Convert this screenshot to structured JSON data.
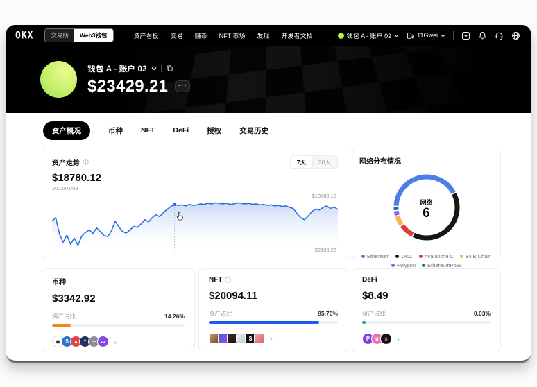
{
  "topbar": {
    "logo": "OKX",
    "toggle": [
      {
        "label": "交易所",
        "active": false
      },
      {
        "label": "Web3钱包",
        "active": true
      }
    ],
    "nav": [
      "资产看板",
      "交易",
      "赚币",
      "NFT 市场",
      "发现",
      "开发者文档"
    ],
    "account_label": "钱包 A - 账户 02",
    "gas_label": "11Gwei",
    "right_icons": [
      "download-icon",
      "bell-icon",
      "headset-icon",
      "globe-icon"
    ]
  },
  "hero": {
    "wallet_label": "钱包 A - 账户 02",
    "balance": "$23429.21",
    "more_label": "···"
  },
  "tabs": [
    {
      "label": "资产概况",
      "active": true
    },
    {
      "label": "币种",
      "active": false
    },
    {
      "label": "NFT",
      "active": false
    },
    {
      "label": "DeFi",
      "active": false
    },
    {
      "label": "授权",
      "active": false
    },
    {
      "label": "交易历史",
      "active": false
    }
  ],
  "trend_card": {
    "title": "资产走势",
    "value": "$18780.12",
    "date": "2023/01/08",
    "ranges": [
      {
        "label": "7天",
        "active": true
      },
      {
        "label": "30天",
        "active": false
      }
    ],
    "max_label": "$18780.12",
    "min_label": "$2190.26"
  },
  "network_card": {
    "title": "网络分布情况",
    "center_label": "网络",
    "center_value": "6"
  },
  "chart_data": [
    {
      "type": "line",
      "title": "资产走势",
      "xlabel": "",
      "ylabel": "",
      "ylim": [
        2190.26,
        18780.12
      ],
      "y_max_label": "$18780.12",
      "y_min_label": "$2190.26",
      "hover_point": {
        "date": "2023/01/08",
        "value": "$18780.12"
      },
      "line_color": "#2B6CDE",
      "fill_color_top": "rgba(59,115,222,0.28)",
      "marker_index": 33,
      "values": [
        55,
        62,
        30,
        14,
        28,
        10,
        22,
        8,
        26,
        33,
        38,
        31,
        42,
        35,
        27,
        25,
        36,
        55,
        44,
        35,
        32,
        38,
        45,
        43,
        50,
        58,
        54,
        62,
        68,
        64,
        72,
        78,
        84,
        88,
        86,
        87,
        85,
        88,
        86,
        87,
        89,
        88,
        90,
        89,
        91,
        90,
        89,
        90,
        88,
        89,
        91,
        90,
        89,
        90,
        88,
        89,
        87,
        88,
        86,
        87,
        85,
        86,
        84,
        85,
        82,
        80,
        70,
        62,
        58,
        65,
        74,
        79,
        77,
        82,
        85,
        80,
        83,
        78
      ]
    },
    {
      "type": "donut",
      "title": "网络分布情况",
      "center_label": "网络",
      "center_value": 6,
      "legend_position": "bottom",
      "segments": [
        {
          "name": "Ethereum",
          "color": "#4D7EE8",
          "value": 42
        },
        {
          "name": "OKC",
          "color": "#151515",
          "value": 40
        },
        {
          "name": "Avalanche C",
          "color": "#DF3A3E",
          "value": 7.5
        },
        {
          "name": "BNB Chain",
          "color": "#F3BA4F",
          "value": 5
        },
        {
          "name": "Polygon",
          "color": "#8B5CF6",
          "value": 2.2
        },
        {
          "name": "EthereumPoW",
          "color": "#0C7F8C",
          "value": 1.7
        }
      ]
    }
  ],
  "summary_cards": [
    {
      "title": "币种",
      "value": "$3342.92",
      "ratio_label": "资产占比",
      "percent_label": "14.26%",
      "percent": 14.26,
      "bar_color": "#F5861F",
      "icons": [
        {
          "name": "eth-icon",
          "bg": "#ffffff",
          "fg": "#3a3a3a",
          "glyph": "◆",
          "border": "#dcdcdc"
        },
        {
          "name": "usdc-icon",
          "bg": "#2775CA",
          "fg": "#fff",
          "glyph": "$"
        },
        {
          "name": "avax-icon",
          "bg": "#E0444A",
          "fg": "#fff",
          "glyph": "▲"
        },
        {
          "name": "ethw-icon",
          "bg": "#20315F",
          "fg": "#fff",
          "glyph": "*"
        },
        {
          "name": "okb-icon",
          "bg": "#8E8E8E",
          "fg": "#fff",
          "glyph": "~"
        },
        {
          "name": "polygon-icon",
          "bg": "#8247E5",
          "fg": "#fff",
          "glyph": "∞"
        }
      ],
      "chevron": "›"
    },
    {
      "title": "NFT",
      "value": "$20094.11",
      "ratio_label": "资产占比",
      "percent_label": "85.70%",
      "percent": 85.7,
      "bar_color": "#1F5AEF",
      "thumbs": [
        {
          "name": "nft-thumbnail",
          "bg": "linear-gradient(135deg,#c79a63,#6d4a2c)",
          "glyph": ""
        },
        {
          "name": "nft-thumbnail",
          "bg": "linear-gradient(135deg,#5156e5,#9b4de0)",
          "glyph": ""
        },
        {
          "name": "nft-thumbnail",
          "bg": "linear-gradient(135deg,#3a2d24,#191310)",
          "glyph": ""
        },
        {
          "name": "nft-thumbnail",
          "bg": "linear-gradient(135deg,#f0eeee,#c6c6c6)",
          "glyph": "",
          "fg": "#333"
        },
        {
          "name": "nft-thumbnail",
          "bg": "#101010",
          "glyph": "$",
          "fg": "#fff"
        },
        {
          "name": "nft-thumbnail",
          "bg": "linear-gradient(135deg,#f3a6a6,#d95f6a)",
          "glyph": ""
        }
      ],
      "chevron": "›"
    },
    {
      "title": "DeFi",
      "value": "$8.49",
      "ratio_label": "资产占比",
      "percent_label": "0.03%",
      "percent": 0.03,
      "bar_color": "#17A37B",
      "icons": [
        {
          "name": "defi-protocol-icon",
          "bg": "#7B3FE4",
          "fg": "#fff",
          "glyph": "P"
        },
        {
          "name": "defi-protocol-icon",
          "bg": "#F06EB7",
          "fg": "#fff",
          "glyph": "u"
        },
        {
          "name": "defi-protocol-icon",
          "bg": "#111111",
          "fg": "#ff7ab8",
          "glyph": "s"
        }
      ],
      "chevron": "›"
    }
  ]
}
